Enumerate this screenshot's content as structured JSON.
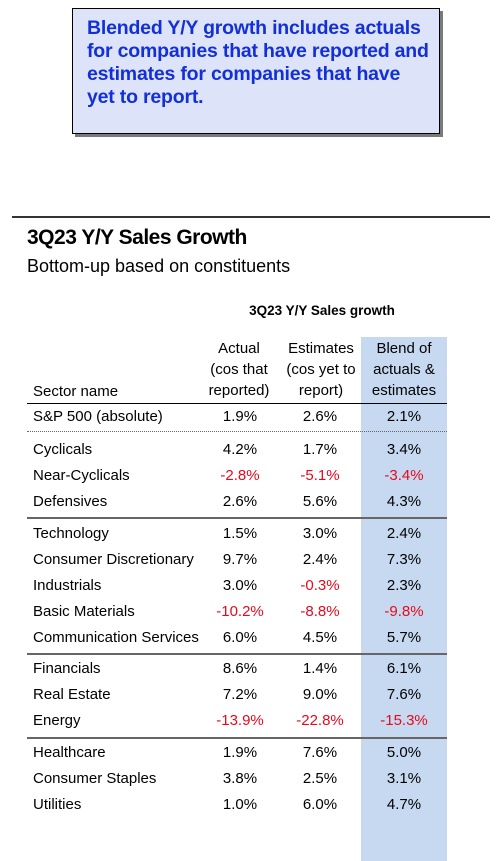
{
  "callout": {
    "lines": [
      "Blended Y/Y growth includes actuals",
      "for companies that have reported and",
      "estimates for companies that have",
      "yet to report."
    ]
  },
  "title": "3Q23 Y/Y Sales Growth",
  "subtitle": "Bottom-up based on constituents",
  "table": {
    "group_header": "3Q23 Y/Y Sales growth",
    "sector_header": "Sector name",
    "columns": [
      [
        "Actual",
        "(cos that",
        "reported)"
      ],
      [
        "Estimates",
        "(cos yet to",
        "report)"
      ],
      [
        "Blend of",
        "actuals &",
        "estimates"
      ]
    ],
    "rows": [
      {
        "name": "S&P 500 (absolute)",
        "values": [
          "1.9%",
          "2.6%",
          "2.1%"
        ]
      },
      {
        "name": "Cyclicals",
        "values": [
          "4.2%",
          "1.7%",
          "3.4%"
        ]
      },
      {
        "name": "Near-Cyclicals",
        "values": [
          "-2.8%",
          "-5.1%",
          "-3.4%"
        ]
      },
      {
        "name": "Defensives",
        "values": [
          "2.6%",
          "5.6%",
          "4.3%"
        ]
      },
      {
        "name": "Technology",
        "values": [
          "1.5%",
          "3.0%",
          "2.4%"
        ]
      },
      {
        "name": "Consumer Discretionary",
        "values": [
          "9.7%",
          "2.4%",
          "7.3%"
        ]
      },
      {
        "name": "Industrials",
        "values": [
          "3.0%",
          "-0.3%",
          "2.3%"
        ]
      },
      {
        "name": "Basic Materials",
        "values": [
          "-10.2%",
          "-8.8%",
          "-9.8%"
        ]
      },
      {
        "name": "Communication Services",
        "values": [
          "6.0%",
          "4.5%",
          "5.7%"
        ]
      },
      {
        "name": "Financials",
        "values": [
          "8.6%",
          "1.4%",
          "6.1%"
        ]
      },
      {
        "name": "Real Estate",
        "values": [
          "7.2%",
          "9.0%",
          "7.6%"
        ]
      },
      {
        "name": "Energy",
        "values": [
          "-13.9%",
          "-22.8%",
          "-15.3%"
        ]
      },
      {
        "name": "Healthcare",
        "values": [
          "1.9%",
          "7.6%",
          "5.0%"
        ]
      },
      {
        "name": "Consumer Staples",
        "values": [
          "3.8%",
          "2.5%",
          "3.1%"
        ]
      },
      {
        "name": "Utilities",
        "values": [
          "1.0%",
          "6.0%",
          "4.7%"
        ]
      }
    ]
  },
  "colors": {
    "callout_text": "#1330d8",
    "callout_background": "#dde3f9",
    "blend_column_background": "#c6d9f1",
    "negative_value": "#e8081c"
  }
}
